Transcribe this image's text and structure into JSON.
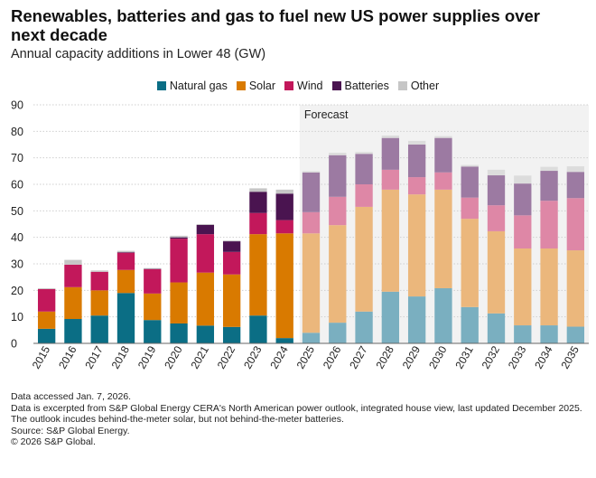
{
  "title": "Renewables, batteries and gas to fuel new US power supplies over next decade",
  "subtitle": "Annual capacity additions in Lower 48 (GW)",
  "forecast_label": "Forecast",
  "notes": {
    "accessed": "Data accessed Jan. 7, 2026.",
    "excerpt": "Data is excerpted from S&P Global Energy CERA's North American power outlook, integrated house view, last updated December 2025.",
    "outlook": "The outlook incudes behind-the-meter solar, but not behind-the-meter batteries.",
    "source": "Source: S&P Global Energy.",
    "copyright": "© 2026 S&P Global."
  },
  "colors": {
    "natural_gas": "#0b6e85",
    "solar": "#d97a00",
    "wind": "#c2185b",
    "batteries": "#4a1450",
    "other": "#c6c6c6",
    "natural_gas_forecast": "#7aafc0",
    "solar_forecast": "#ebb77c",
    "wind_forecast": "#de87a6",
    "batteries_forecast": "#9c7aa2",
    "other_forecast": "#dcdcdc",
    "forecast_background": "#f2f2f2"
  },
  "chart_data": {
    "type": "bar",
    "stacked": true,
    "categories": [
      "2015",
      "2016",
      "2017",
      "2018",
      "2019",
      "2020",
      "2021",
      "2022",
      "2023",
      "2024",
      "2025",
      "2026",
      "2027",
      "2028",
      "2029",
      "2030",
      "2031",
      "2032",
      "2033",
      "2034",
      "2035"
    ],
    "forecast_from": "2025",
    "series": [
      {
        "name": "Natural gas",
        "key": "natural_gas",
        "values": [
          5.5,
          9.2,
          10.5,
          19.0,
          8.8,
          7.5,
          6.7,
          6.2,
          10.5,
          2.0,
          4.0,
          7.8,
          12.0,
          19.5,
          17.7,
          20.8,
          13.7,
          11.3,
          6.8,
          6.8,
          6.3
        ]
      },
      {
        "name": "Solar",
        "key": "solar",
        "values": [
          6.5,
          12.0,
          9.5,
          8.7,
          10.0,
          15.5,
          20.0,
          19.8,
          30.7,
          39.5,
          37.5,
          36.8,
          39.5,
          38.5,
          38.5,
          37.2,
          33.3,
          31.0,
          29.0,
          29.0,
          28.8
        ]
      },
      {
        "name": "Wind",
        "key": "wind",
        "values": [
          8.5,
          8.5,
          7.0,
          6.5,
          9.2,
          16.5,
          14.5,
          8.5,
          8.0,
          5.0,
          8.0,
          10.7,
          8.5,
          7.5,
          6.5,
          6.5,
          8.0,
          9.8,
          12.5,
          18.0,
          19.7
        ]
      },
      {
        "name": "Batteries",
        "key": "batteries",
        "values": [
          0,
          0,
          0,
          0.2,
          0.1,
          0.5,
          3.5,
          4.0,
          8.0,
          10.0,
          15.0,
          15.7,
          11.5,
          12.0,
          12.3,
          13.0,
          11.7,
          11.3,
          12.0,
          11.3,
          9.9
        ]
      },
      {
        "name": "Other",
        "key": "other",
        "values": [
          0.3,
          1.8,
          0.5,
          0.5,
          0.3,
          0.6,
          0.3,
          0.3,
          1.3,
          1.5,
          0.5,
          0.9,
          0.7,
          0.9,
          1.4,
          0.7,
          0.6,
          2.1,
          3.0,
          1.5,
          2.1
        ]
      }
    ],
    "ylim": [
      0,
      90
    ],
    "yticks": [
      0,
      10,
      20,
      30,
      40,
      50,
      60,
      70,
      80,
      90
    ],
    "xlabel": "",
    "ylabel": "",
    "grid": true,
    "legend_position": "top-center"
  }
}
